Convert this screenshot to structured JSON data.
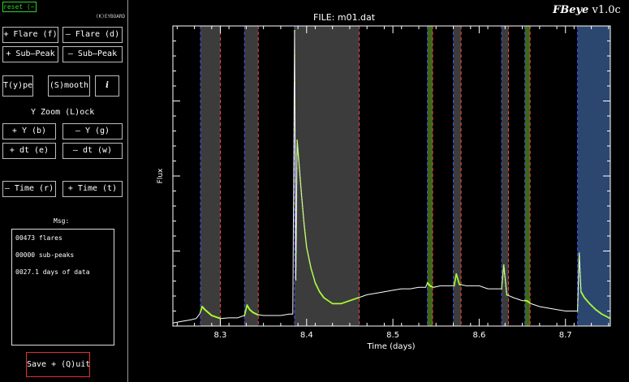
{
  "app": {
    "title_brand": "FBeye",
    "title_version": "v1.0c"
  },
  "controls": {
    "reset": "reset (~)",
    "keyboard": "(K)EYBOARD",
    "add_flare": "+ Flare (f)",
    "remove_flare": "– Flare (d)",
    "add_subpeak": "+ Sub–Peak",
    "remove_subpeak": "– Sub–Peak",
    "type": "T(y)pe",
    "smooth": "(S)mooth",
    "info": "i",
    "yzoom_lock": "Y Zoom (L)ock",
    "y_plus": "+ Y (b)",
    "y_minus": "– Y (g)",
    "dt_plus": "+ dt (e)",
    "dt_minus": "– dt (w)",
    "time_minus": "– Time (r)",
    "time_plus": "+ Time (t)",
    "save_quit": "Save + (Q)uit"
  },
  "messages": {
    "heading": "Msg:",
    "lines": [
      "00473  flares",
      "00000 sub-peaks",
      "0027.1 days of data"
    ]
  },
  "chart_data": {
    "type": "line",
    "title": "FILE: m01.dat",
    "xlabel": "Time (days)",
    "ylabel": "Flux",
    "xlim": [
      8.245,
      8.752
    ],
    "ylim": [
      0,
      1
    ],
    "xticks": [
      "8.3",
      "8.4",
      "8.5",
      "8.6",
      "8.7"
    ],
    "xtick_values": [
      8.3,
      8.4,
      8.5,
      8.6,
      8.7
    ],
    "colors": {
      "flux": "#ffffff",
      "flare_points": "#aaff33",
      "gray_region": "#3c3c3c",
      "blue_region": "#2b4770",
      "green_region": "#3f6618",
      "start_line": "#4455ff",
      "stop_line": "#ff4444"
    },
    "regions": [
      {
        "kind": "gray",
        "start": 8.277,
        "stop": 8.3
      },
      {
        "kind": "gray",
        "start": 8.328,
        "stop": 8.344
      },
      {
        "kind": "gray",
        "start": 8.386,
        "stop": 8.461
      },
      {
        "kind": "green",
        "start": 8.54,
        "stop": 8.546
      },
      {
        "kind": "gray",
        "start": 8.57,
        "stop": 8.579
      },
      {
        "kind": "gray",
        "start": 8.626,
        "stop": 8.634
      },
      {
        "kind": "green",
        "start": 8.653,
        "stop": 8.659
      },
      {
        "kind": "blue",
        "start": 8.714,
        "stop": 8.752
      }
    ],
    "series": [
      {
        "x": [
          8.245,
          8.255,
          8.265,
          8.272,
          8.276,
          8.279,
          8.282,
          8.286,
          8.29,
          8.295,
          8.3,
          8.31,
          8.32,
          8.328,
          8.331,
          8.334,
          8.338,
          8.343,
          8.35,
          8.36,
          8.37,
          8.38,
          8.384,
          8.386,
          8.3875,
          8.389,
          8.391,
          8.394,
          8.397,
          8.4,
          8.405,
          8.41,
          8.415,
          8.42,
          8.43,
          8.44,
          8.45,
          8.46,
          8.47,
          8.48,
          8.49,
          8.5,
          8.51,
          8.52,
          8.53,
          8.538,
          8.54,
          8.543,
          8.547,
          8.555,
          8.565,
          8.571,
          8.5735,
          8.577,
          8.585,
          8.6,
          8.61,
          8.62,
          8.626,
          8.6285,
          8.632,
          8.64,
          8.65,
          8.655,
          8.66,
          8.67,
          8.68,
          8.69,
          8.7,
          8.71,
          8.714,
          8.716,
          8.718,
          8.722,
          8.728,
          8.735,
          8.742,
          8.752
        ],
        "y": [
          0.005,
          0.01,
          0.015,
          0.02,
          0.035,
          0.06,
          0.05,
          0.04,
          0.03,
          0.025,
          0.02,
          0.022,
          0.022,
          0.03,
          0.065,
          0.05,
          0.04,
          0.033,
          0.03,
          0.03,
          0.03,
          0.035,
          0.035,
          0.99,
          0.15,
          0.62,
          0.55,
          0.44,
          0.34,
          0.26,
          0.19,
          0.14,
          0.11,
          0.09,
          0.07,
          0.07,
          0.08,
          0.09,
          0.1,
          0.105,
          0.11,
          0.115,
          0.12,
          0.12,
          0.125,
          0.125,
          0.14,
          0.13,
          0.125,
          0.13,
          0.13,
          0.13,
          0.17,
          0.135,
          0.13,
          0.13,
          0.12,
          0.12,
          0.12,
          0.2,
          0.1,
          0.09,
          0.08,
          0.08,
          0.07,
          0.06,
          0.055,
          0.05,
          0.045,
          0.045,
          0.045,
          0.24,
          0.11,
          0.09,
          0.07,
          0.05,
          0.035,
          0.02
        ]
      }
    ]
  }
}
